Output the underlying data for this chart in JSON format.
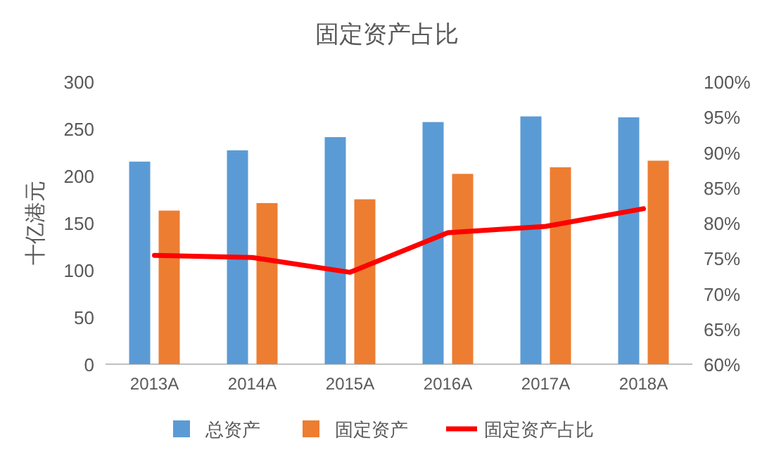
{
  "chart_data": {
    "type": "bar",
    "title": "固定资产占比",
    "ylabel": "十亿港元",
    "categories": [
      "2013A",
      "2014A",
      "2015A",
      "2016A",
      "2017A",
      "2018A"
    ],
    "series": [
      {
        "name": "总资产",
        "color": "#5b9bd5",
        "values": [
          215,
          227,
          241,
          257,
          263,
          262
        ]
      },
      {
        "name": "固定资产",
        "color": "#ed7d31",
        "values": [
          163,
          171,
          175,
          202,
          209,
          216
        ]
      },
      {
        "name": "固定资产占比",
        "type": "line",
        "axis": "y2",
        "color": "#ff0000",
        "values": [
          75.4,
          75.1,
          73.0,
          78.6,
          79.5,
          82.0
        ]
      }
    ],
    "ylim": [
      0,
      300
    ],
    "yticks": [
      0,
      50,
      100,
      150,
      200,
      250,
      300
    ],
    "y2lim": [
      60,
      100
    ],
    "y2ticks": [
      {
        "value": 60,
        "label": "60%"
      },
      {
        "value": 65,
        "label": "65%"
      },
      {
        "value": 70,
        "label": "70%"
      },
      {
        "value": 75,
        "label": "75%"
      },
      {
        "value": 80,
        "label": "80%"
      },
      {
        "value": 85,
        "label": "85%"
      },
      {
        "value": 90,
        "label": "90%"
      },
      {
        "value": 95,
        "label": "95%"
      },
      {
        "value": 100,
        "label": "100%"
      }
    ],
    "grid": false,
    "legend": "bottom"
  }
}
